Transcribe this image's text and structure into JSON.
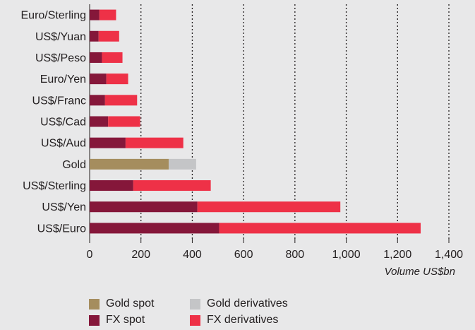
{
  "chart_data": {
    "type": "bar",
    "orientation": "horizontal",
    "stacked": true,
    "title": "",
    "xlabel": "Volume US$bn",
    "ylabel": "",
    "xlim": [
      0,
      1400
    ],
    "xticks": [
      0,
      200,
      400,
      600,
      800,
      1000,
      1200,
      1400
    ],
    "xtick_labels": [
      "0",
      "200",
      "400",
      "600",
      "800",
      "1,000",
      "1,200",
      "1,400"
    ],
    "grid": "vertical dotted",
    "legend_position": "bottom",
    "categories": [
      "Euro/Sterling",
      "US$/Yuan",
      "US$/Peso",
      "Euro/Yen",
      "US$/Franc",
      "US$/Cad",
      "US$/Aud",
      "Gold",
      "US$/Sterling",
      "US$/Yen",
      "US$/Euro"
    ],
    "series": [
      {
        "name": "Gold spot",
        "color": "#a58d5e",
        "values": [
          0,
          0,
          0,
          0,
          0,
          0,
          0,
          308,
          0,
          0,
          0
        ]
      },
      {
        "name": "Gold derivatives",
        "color": "#c4c5c7",
        "values": [
          0,
          0,
          0,
          0,
          0,
          0,
          0,
          107,
          0,
          0,
          0
        ]
      },
      {
        "name": "FX spot",
        "color": "#85173a",
        "values": [
          38,
          35,
          48,
          65,
          60,
          72,
          140,
          0,
          170,
          420,
          505
        ]
      },
      {
        "name": "FX derivatives",
        "color": "#ee3147",
        "values": [
          65,
          80,
          80,
          85,
          125,
          125,
          225,
          0,
          302,
          557,
          785
        ]
      }
    ]
  }
}
